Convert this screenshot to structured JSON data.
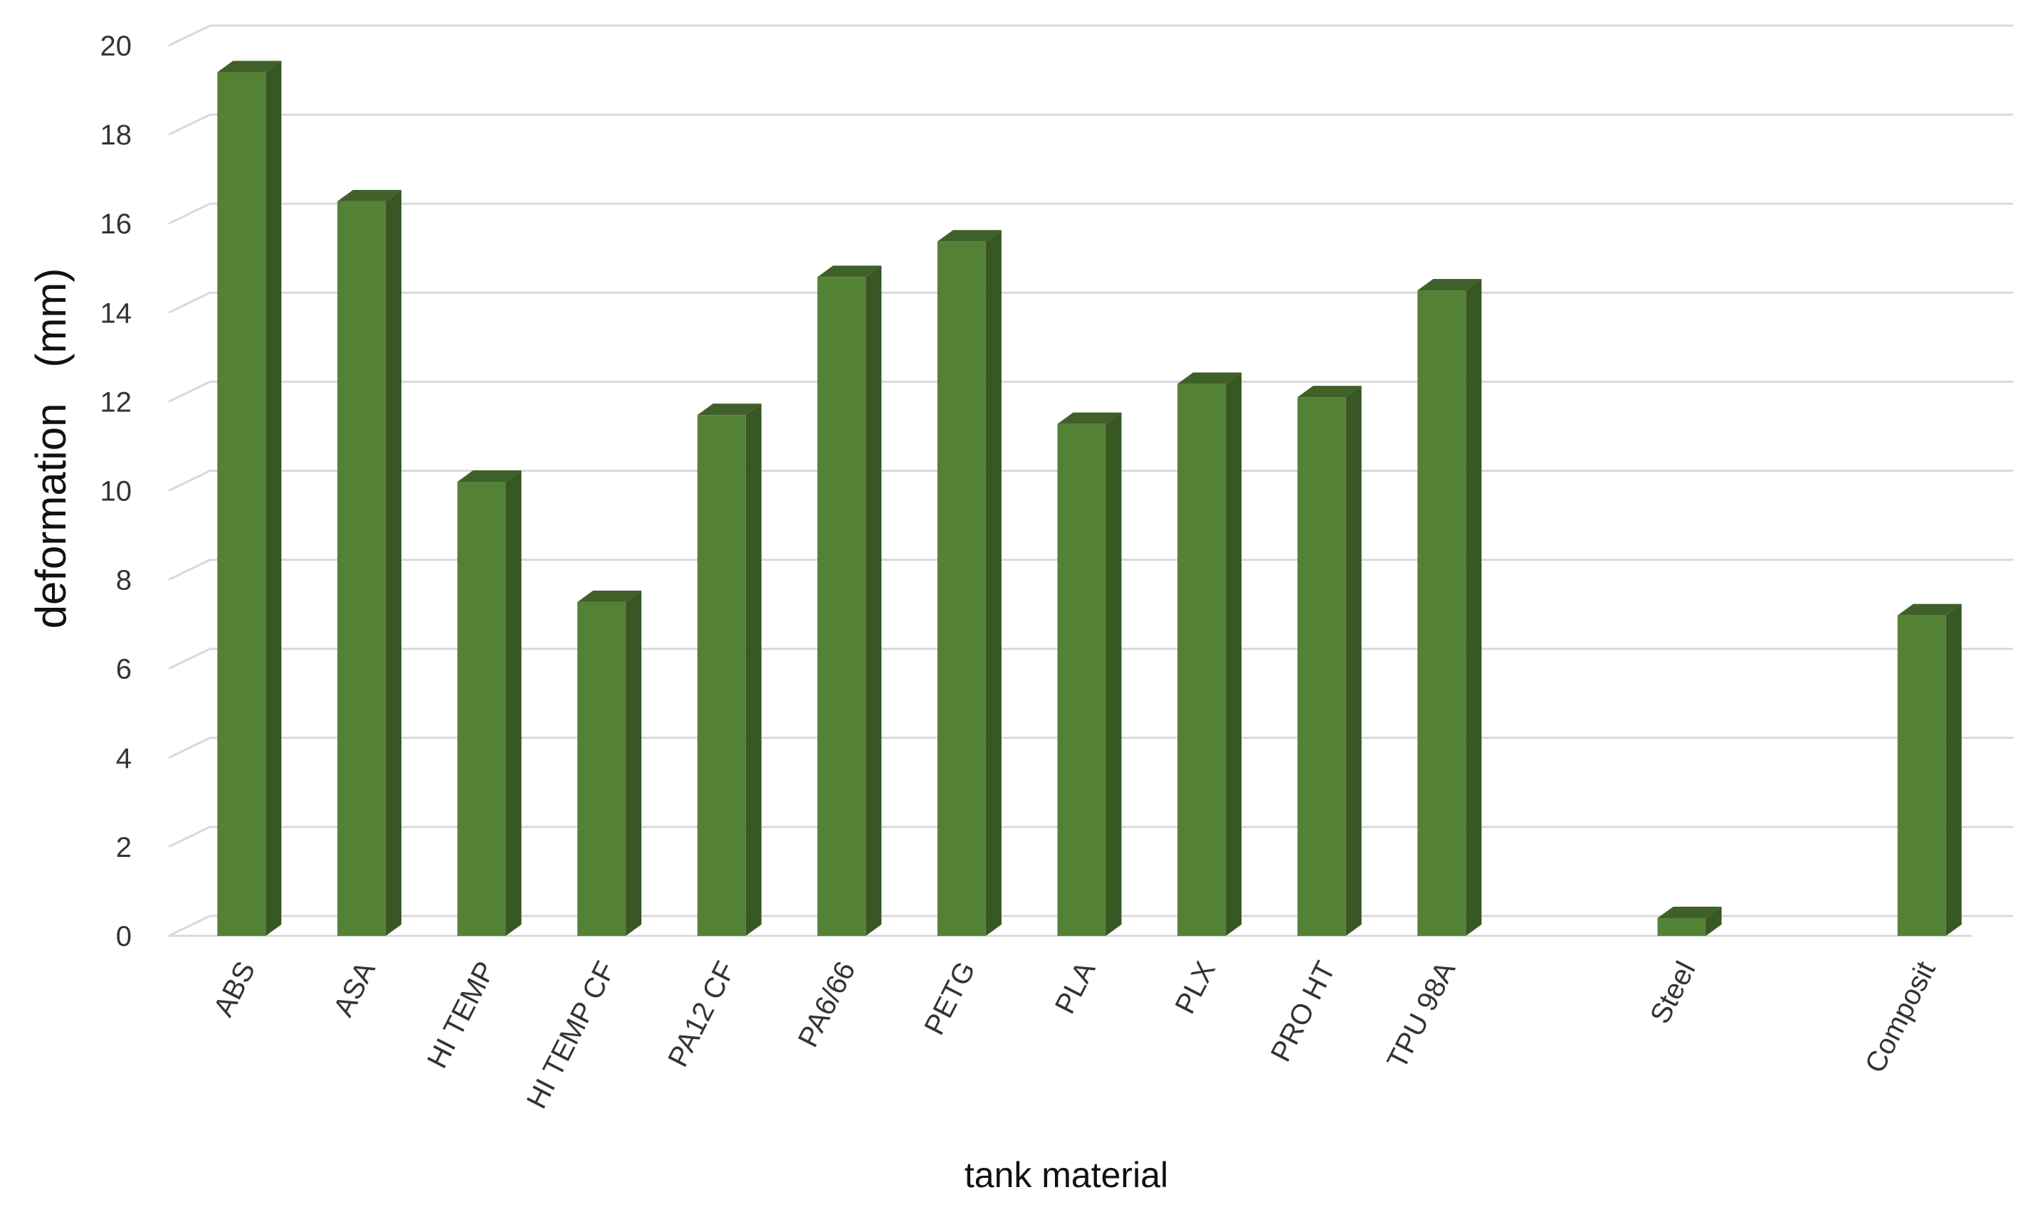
{
  "chart_data": {
    "type": "bar",
    "style": "3d-column",
    "title": "",
    "xlabel": "tank material",
    "ylabel": "deformation   (mm)",
    "ylim": [
      0,
      20
    ],
    "ytick_step": 2,
    "yticks": [
      "0",
      "2",
      "4",
      "6",
      "8",
      "10",
      "12",
      "14",
      "16",
      "18",
      "20"
    ],
    "grid": true,
    "legend": "none",
    "colors": {
      "bar_front": "#548235",
      "bar_side": "#385723",
      "bar_top": "#3f6129",
      "grid": "#d9d9d9",
      "tick_text": "#333333"
    },
    "categories": [
      "ABS",
      "ASA",
      "HI TEMP",
      "HI TEMP CF",
      "PA12 CF",
      "PA6/66",
      "PETG",
      "PLA",
      "PLX",
      "PRO HT",
      "TPU 98A",
      "",
      "Steel",
      "",
      "Composit"
    ],
    "values": [
      19.4,
      16.5,
      10.2,
      7.5,
      11.7,
      14.8,
      15.6,
      11.5,
      12.4,
      12.1,
      14.5,
      null,
      0.4,
      null,
      7.2
    ]
  }
}
